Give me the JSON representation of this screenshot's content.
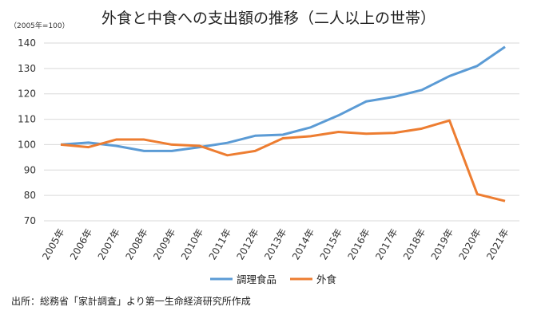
{
  "chart_data": {
    "type": "line",
    "title": "外食と中食への支出額の推移（二人以上の世帯）",
    "ylabel": "（2005年=100）",
    "xlabel": "",
    "categories": [
      "2005年",
      "2006年",
      "2007年",
      "2008年",
      "2009年",
      "2010年",
      "2011年",
      "2012年",
      "2013年",
      "2014年",
      "2015年",
      "2016年",
      "2017年",
      "2018年",
      "2019年",
      "2020年",
      "2021年"
    ],
    "ylim": [
      70,
      140
    ],
    "yticks": [
      70,
      80,
      90,
      100,
      110,
      120,
      130,
      140
    ],
    "grid": true,
    "legend_position": "bottom",
    "series": [
      {
        "name": "調理食品",
        "color": "#5B9BD5",
        "values": [
          100,
          100.8,
          99.5,
          97.5,
          97.5,
          99,
          100.7,
          103.5,
          103.9,
          106.8,
          111.5,
          117,
          118.8,
          121.5,
          127,
          131,
          138.5
        ]
      },
      {
        "name": "外食",
        "color": "#ED7D31",
        "values": [
          100,
          99,
          102,
          102,
          100,
          99.5,
          95.8,
          97.5,
          102.5,
          103.3,
          105,
          104.3,
          104.6,
          106.3,
          109.5,
          80.5,
          77.8
        ]
      }
    ]
  },
  "source": "出所：総務省「家計調査」より第一生命経済研究所作成"
}
